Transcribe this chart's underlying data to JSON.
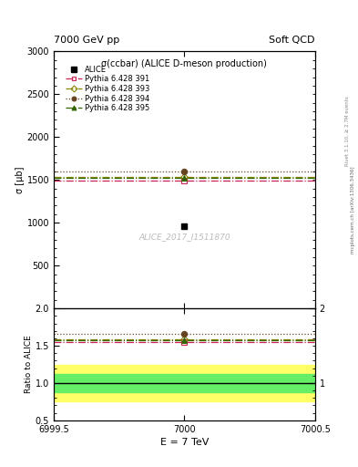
{
  "title_top": "7000 GeV pp",
  "title_right": "Soft QCD",
  "main_title": "σ(ccbar) (ALICE D-meson production)",
  "watermark": "ALICE_2017_I1511870",
  "right_label_bottom": "mcplots.cern.ch [arXiv:1306.3436]",
  "right_label_top": "Rivet 3.1.10, ≥ 2.7M events",
  "xlabel": "E = 7 TeV",
  "ylabel_main": "σ [μb]",
  "ylabel_ratio": "Ratio to ALICE",
  "xlim": [
    6999.5,
    7000.5
  ],
  "ylim_main": [
    0,
    3000
  ],
  "ylim_ratio": [
    0.5,
    2.0
  ],
  "yticks_main": [
    500,
    1000,
    1500,
    2000,
    2500,
    3000
  ],
  "yticks_ratio": [
    0.5,
    1.0,
    1.5,
    2.0
  ],
  "xticks": [
    6999.5,
    7000.0,
    7000.5
  ],
  "xtick_labels": [
    "6999.5",
    "7000",
    "7000.5"
  ],
  "alice_x": 7000.0,
  "alice_y": 960,
  "alice_yerr_low": 210,
  "alice_yerr_high": 210,
  "alice_color": "#000000",
  "alice_marker": "s",
  "alice_markersize": 5,
  "green_band_low": 0.88,
  "green_band_high": 1.12,
  "yellow_band_low": 0.75,
  "yellow_band_high": 1.25,
  "pythia_lines": [
    {
      "label": "Pythia 6.428 391",
      "y_main": 1490,
      "y_ratio": 1.55,
      "color": "#cc2255",
      "linestyle": "dashdot",
      "marker": "s",
      "markerfacecolor": "none"
    },
    {
      "label": "Pythia 6.428 393",
      "y_main": 1530,
      "y_ratio": 1.59,
      "color": "#888800",
      "linestyle": "dashdot",
      "marker": "D",
      "markerfacecolor": "none"
    },
    {
      "label": "Pythia 6.428 394",
      "y_main": 1600,
      "y_ratio": 1.66,
      "color": "#664422",
      "linestyle": "dotted",
      "marker": "o",
      "markerfacecolor": "#664422"
    },
    {
      "label": "Pythia 6.428 395",
      "y_main": 1520,
      "y_ratio": 1.58,
      "color": "#336600",
      "linestyle": "dashdot",
      "marker": "^",
      "markerfacecolor": "#336600"
    }
  ],
  "background_color": "#ffffff"
}
